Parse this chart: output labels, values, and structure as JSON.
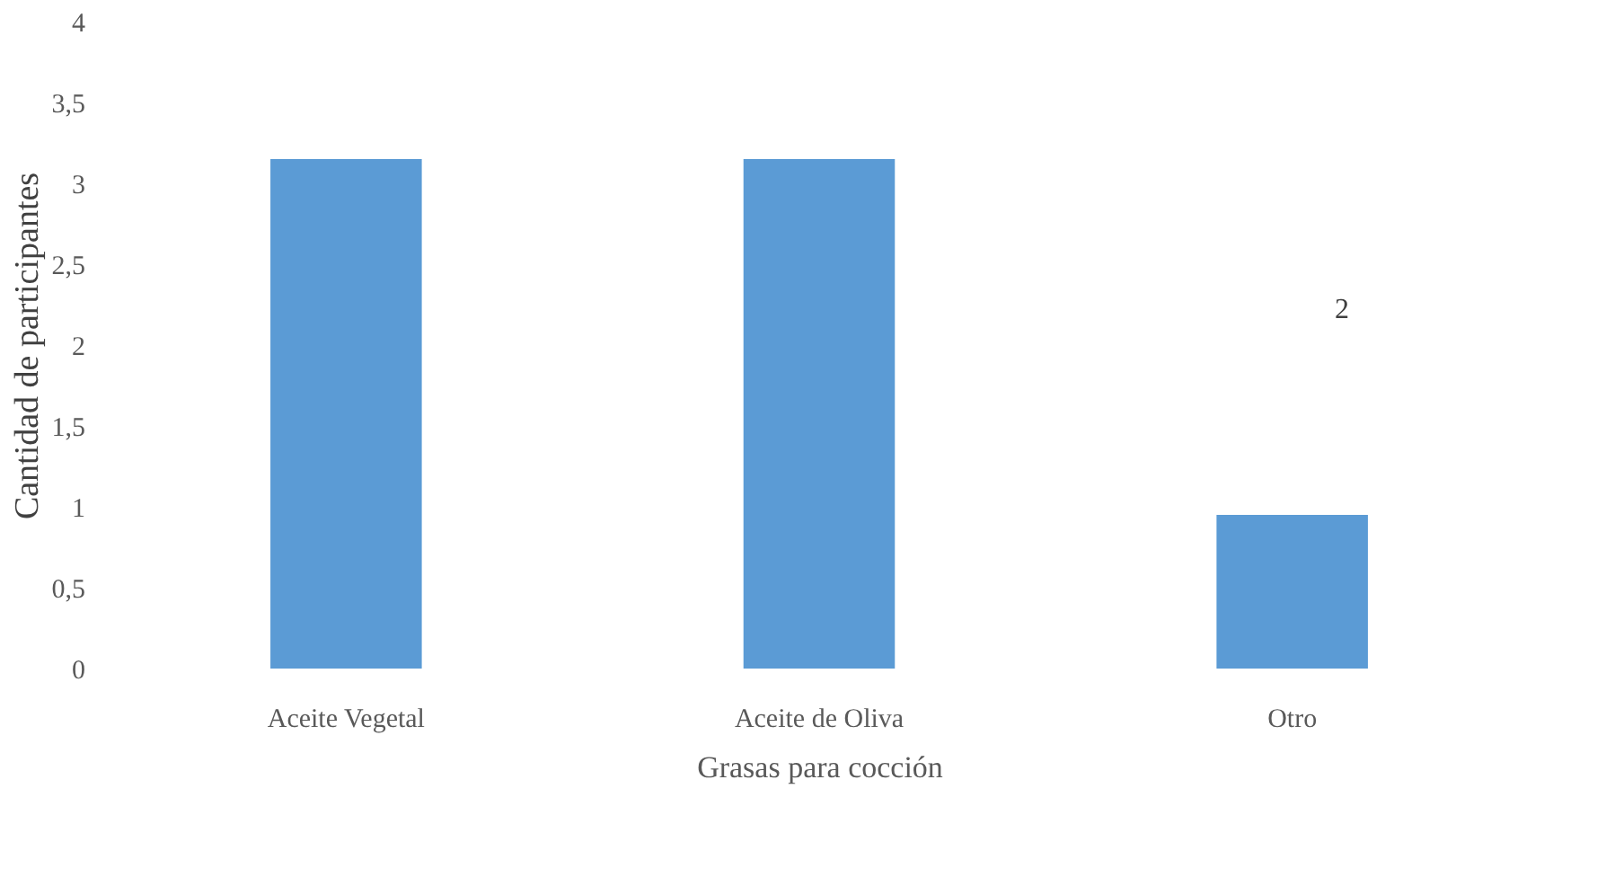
{
  "chart_data": {
    "type": "bar",
    "xlabel": "Grasas  para  cocción",
    "ylabel": "Cantidad de participantes",
    "categories": [
      "Aceite Vegetal",
      "Aceite de Oliva",
      "Otro"
    ],
    "values": [
      3.15,
      3.15,
      0.95
    ],
    "color": "#5b9bd5",
    "ylim": [
      0,
      4
    ],
    "yticks": [
      0,
      {
        "value": 0.5,
        "label": "0,5"
      },
      1,
      {
        "value": 1.5,
        "label": "1,5"
      },
      2,
      {
        "value": 2.5,
        "label": "2,5"
      },
      3,
      {
        "value": 3.5,
        "label": "3,5"
      },
      4
    ],
    "annotations": [
      "2"
    ],
    "grid": false
  }
}
